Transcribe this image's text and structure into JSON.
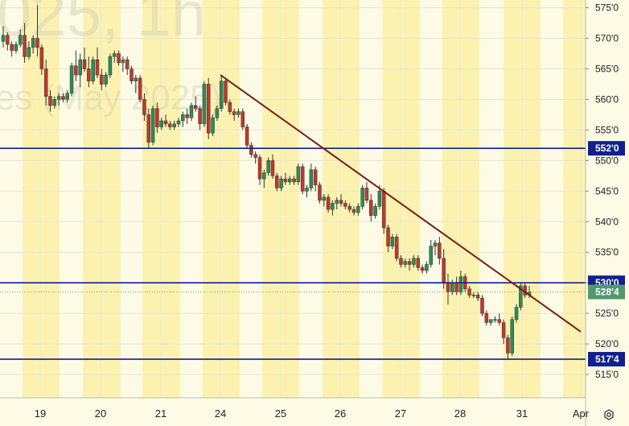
{
  "watermark": {
    "line1": "025, 1h",
    "line2": "es (May 2025)"
  },
  "colors": {
    "background": "#fdfbe6",
    "session_band": "#fbf2b0",
    "bull_candle": "#2e8b57",
    "bear_candle": "#c0392b",
    "trend_line": "#7a1a1a",
    "level_line": "#10208f",
    "last_price_label": "#4e9a6e"
  },
  "chart_data": {
    "type": "candlestick",
    "title": "",
    "xlabel": "",
    "ylabel": "",
    "ylim": [
      512.5,
      576
    ],
    "y_ticks": [
      "515'0",
      "520'0",
      "525'0",
      "530'0",
      "535'0",
      "540'0",
      "545'0",
      "550'0",
      "555'0",
      "560'0",
      "565'0",
      "570'0",
      "575'0"
    ],
    "y_tick_values": [
      515,
      520,
      525,
      530,
      535,
      540,
      545,
      550,
      555,
      560,
      565,
      570,
      575
    ],
    "x_ticks": [
      "19",
      "20",
      "21",
      "24",
      "25",
      "26",
      "27",
      "28",
      "31",
      "Apr"
    ],
    "grid": true,
    "horizontal_levels": [
      {
        "label": "552'0",
        "value": 552.0
      },
      {
        "label": "530'0",
        "value": 530.0
      },
      {
        "label": "517'4",
        "value": 517.5
      }
    ],
    "last_price": {
      "label": "528'4",
      "value": 528.5
    },
    "trend_line": {
      "from": {
        "x": 24.0,
        "y": 564.0
      },
      "to": {
        "x": 33.45,
        "y": 522.0
      }
    },
    "anchors": [
      [
        "19",
        19.0,
        1.2
      ],
      [
        "20",
        19.0,
        2.2
      ],
      [
        "21",
        19.0,
        3.2
      ],
      [
        "24",
        19.0,
        4.2
      ],
      [
        "25",
        19.0,
        5.2
      ],
      [
        "26",
        19.0,
        6.2
      ],
      [
        "27",
        19.0,
        7.2
      ],
      [
        "28",
        19.0,
        8.2
      ],
      [
        "31",
        19.0,
        9.2
      ],
      [
        "Apr",
        19.0,
        10.2
      ]
    ],
    "candles": [
      [
        569.5,
        572.0,
        568.5,
        570.5
      ],
      [
        570.5,
        571.0,
        568.0,
        569.0
      ],
      [
        569.0,
        569.5,
        567.0,
        568.0
      ],
      [
        568.0,
        569.5,
        567.5,
        569.0
      ],
      [
        569.0,
        571.5,
        568.5,
        570.5
      ],
      [
        570.5,
        572.5,
        566.0,
        567.0
      ],
      [
        567.0,
        569.5,
        566.5,
        568.5
      ],
      [
        568.5,
        570.5,
        567.5,
        570.0
      ],
      [
        570.0,
        575.5,
        567.0,
        568.5
      ],
      [
        568.5,
        569.0,
        564.0,
        565.0
      ],
      [
        565.0,
        566.5,
        559.0,
        560.5
      ],
      [
        560.5,
        561.5,
        558.0,
        559.0
      ],
      [
        559.0,
        560.5,
        558.5,
        560.0
      ],
      [
        560.0,
        561.0,
        559.0,
        560.5
      ],
      [
        560.5,
        561.0,
        559.5,
        560.0
      ],
      [
        560.0,
        561.5,
        559.5,
        561.0
      ],
      [
        561.0,
        566.0,
        560.5,
        565.5
      ],
      [
        565.5,
        568.0,
        563.0,
        564.0
      ],
      [
        564.0,
        567.5,
        562.0,
        566.5
      ],
      [
        566.5,
        568.5,
        564.5,
        565.0
      ],
      [
        565.0,
        567.0,
        562.0,
        563.0
      ],
      [
        563.0,
        567.0,
        562.5,
        566.5
      ],
      [
        566.5,
        568.5,
        563.5,
        564.0
      ],
      [
        564.0,
        565.0,
        561.5,
        562.5
      ],
      [
        562.5,
        564.5,
        562.0,
        564.0
      ],
      [
        564.0,
        567.5,
        563.5,
        567.0
      ],
      [
        567.0,
        568.0,
        566.0,
        567.5
      ],
      [
        567.5,
        568.0,
        565.5,
        566.0
      ],
      [
        566.0,
        567.0,
        564.5,
        566.5
      ],
      [
        566.5,
        567.0,
        564.0,
        565.0
      ],
      [
        565.0,
        565.5,
        562.5,
        563.0
      ],
      [
        563.0,
        564.0,
        561.0,
        563.5
      ],
      [
        563.5,
        564.0,
        559.5,
        560.0
      ],
      [
        560.0,
        561.0,
        556.5,
        557.5
      ],
      [
        557.5,
        558.5,
        552.0,
        553.0
      ],
      [
        553.0,
        559.0,
        552.5,
        558.5
      ],
      [
        558.5,
        559.5,
        554.5,
        555.5
      ],
      [
        555.5,
        557.0,
        555.0,
        556.5
      ],
      [
        556.5,
        557.5,
        555.5,
        556.0
      ],
      [
        556.0,
        556.5,
        555.0,
        555.5
      ],
      [
        555.5,
        556.5,
        555.0,
        556.0
      ],
      [
        556.0,
        557.0,
        555.5,
        556.5
      ],
      [
        556.5,
        558.0,
        555.5,
        557.5
      ],
      [
        557.5,
        558.5,
        556.0,
        557.0
      ],
      [
        557.0,
        559.5,
        556.5,
        559.0
      ],
      [
        559.0,
        560.5,
        558.0,
        558.5
      ],
      [
        558.5,
        559.0,
        555.0,
        556.0
      ],
      [
        556.0,
        563.0,
        555.5,
        562.5
      ],
      [
        562.5,
        563.5,
        553.5,
        554.5
      ],
      [
        554.5,
        557.5,
        554.0,
        557.0
      ],
      [
        557.0,
        559.0,
        556.5,
        558.5
      ],
      [
        558.5,
        564.0,
        558.0,
        563.0
      ],
      [
        563.0,
        563.5,
        559.0,
        559.5
      ],
      [
        559.5,
        560.0,
        557.5,
        558.0
      ],
      [
        558.0,
        558.5,
        556.5,
        557.5
      ],
      [
        557.5,
        558.5,
        557.0,
        558.0
      ],
      [
        558.0,
        558.5,
        555.0,
        555.5
      ],
      [
        555.5,
        556.0,
        552.0,
        552.5
      ],
      [
        552.5,
        553.0,
        550.5,
        551.0
      ],
      [
        551.0,
        551.5,
        549.5,
        550.5
      ],
      [
        550.5,
        551.0,
        546.0,
        547.0
      ],
      [
        547.0,
        548.5,
        545.5,
        548.0
      ],
      [
        548.0,
        550.5,
        547.5,
        550.0
      ],
      [
        550.0,
        551.0,
        547.0,
        547.5
      ],
      [
        547.5,
        548.0,
        545.0,
        545.5
      ],
      [
        545.5,
        547.5,
        545.0,
        547.0
      ],
      [
        547.0,
        548.0,
        546.0,
        546.5
      ],
      [
        546.5,
        547.5,
        546.0,
        547.0
      ],
      [
        547.0,
        547.5,
        546.0,
        546.5
      ],
      [
        546.5,
        549.5,
        546.0,
        549.0
      ],
      [
        549.0,
        549.5,
        544.5,
        545.0
      ],
      [
        545.0,
        546.0,
        544.0,
        545.5
      ],
      [
        545.5,
        549.5,
        545.0,
        548.5
      ],
      [
        548.5,
        549.0,
        545.0,
        546.0
      ],
      [
        546.0,
        546.5,
        543.0,
        543.5
      ],
      [
        543.5,
        544.5,
        542.5,
        544.0
      ],
      [
        544.0,
        544.5,
        541.5,
        542.0
      ],
      [
        542.0,
        543.5,
        541.0,
        543.0
      ],
      [
        543.0,
        544.0,
        542.0,
        543.5
      ],
      [
        543.5,
        544.5,
        542.5,
        543.0
      ],
      [
        543.0,
        543.5,
        542.0,
        542.5
      ],
      [
        542.5,
        543.0,
        541.5,
        542.0
      ],
      [
        542.0,
        542.5,
        541.0,
        541.5
      ],
      [
        541.5,
        543.0,
        541.0,
        542.5
      ],
      [
        542.5,
        546.0,
        542.0,
        545.5
      ],
      [
        545.5,
        546.5,
        543.0,
        543.5
      ],
      [
        543.5,
        544.5,
        540.0,
        541.0
      ],
      [
        541.0,
        543.0,
        540.5,
        542.5
      ],
      [
        542.5,
        546.0,
        542.0,
        545.0
      ],
      [
        545.0,
        545.5,
        538.0,
        539.0
      ],
      [
        539.0,
        539.5,
        535.0,
        536.0
      ],
      [
        536.0,
        538.0,
        535.5,
        537.5
      ],
      [
        537.5,
        538.0,
        533.5,
        534.0
      ],
      [
        534.0,
        534.5,
        532.5,
        533.0
      ],
      [
        533.0,
        534.0,
        532.5,
        533.5
      ],
      [
        533.5,
        534.0,
        532.0,
        533.0
      ],
      [
        533.0,
        534.5,
        532.5,
        534.0
      ],
      [
        534.0,
        534.5,
        532.0,
        532.5
      ],
      [
        532.5,
        533.0,
        531.5,
        532.0
      ],
      [
        532.0,
        533.5,
        531.5,
        533.0
      ],
      [
        533.0,
        537.0,
        532.5,
        536.0
      ],
      [
        536.0,
        537.0,
        534.5,
        536.5
      ],
      [
        536.5,
        537.5,
        533.0,
        534.0
      ],
      [
        534.0,
        535.5,
        529.0,
        530.0
      ],
      [
        530.0,
        531.5,
        526.5,
        528.5
      ],
      [
        528.5,
        530.5,
        528.0,
        530.0
      ],
      [
        530.0,
        531.0,
        528.0,
        528.5
      ],
      [
        528.5,
        532.0,
        528.0,
        531.0
      ],
      [
        531.0,
        531.5,
        528.5,
        529.0
      ],
      [
        529.0,
        529.5,
        527.5,
        528.0
      ],
      [
        528.0,
        528.5,
        527.5,
        528.0
      ],
      [
        528.0,
        528.5,
        527.0,
        527.5
      ],
      [
        527.5,
        528.0,
        524.5,
        525.0
      ],
      [
        525.0,
        525.5,
        523.0,
        523.5
      ],
      [
        523.5,
        524.0,
        523.0,
        524.0
      ],
      [
        524.0,
        524.5,
        523.5,
        524.0
      ],
      [
        524.0,
        525.0,
        523.0,
        523.5
      ],
      [
        523.5,
        524.0,
        520.0,
        521.0
      ],
      [
        521.0,
        521.5,
        517.5,
        518.5
      ],
      [
        518.5,
        524.5,
        518.0,
        524.0
      ],
      [
        524.0,
        526.5,
        523.5,
        526.0
      ],
      [
        526.0,
        530.0,
        525.5,
        529.5
      ],
      [
        529.5,
        530.0,
        527.5,
        528.0
      ],
      [
        528.0,
        529.5,
        527.5,
        528.5
      ]
    ]
  }
}
